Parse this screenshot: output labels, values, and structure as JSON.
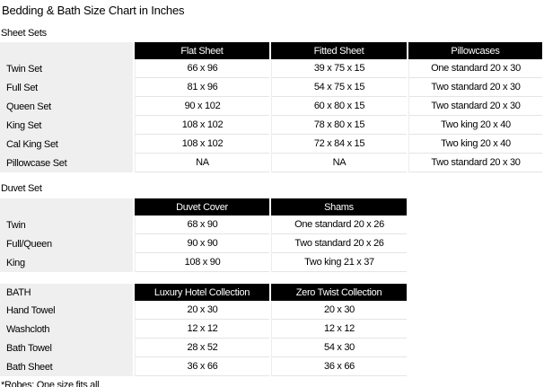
{
  "page": {
    "title": "Bedding & Bath Size Chart in Inches",
    "footnote": "*Robes: One size fits all"
  },
  "colors": {
    "header_bg": "#000000",
    "header_text": "#ffffff",
    "label_column_bg": "#efefef",
    "row_border": "#e4e4e4",
    "page_bg": "#ffffff",
    "text": "#000000"
  },
  "sheet_sets": {
    "section_label": "Sheet Sets",
    "columns": [
      "Flat Sheet",
      "Fitted Sheet",
      "Pillowcases"
    ],
    "rows": [
      [
        "Twin Set",
        "66 x 96",
        "39 x 75 x 15",
        "One standard 20 x 30"
      ],
      [
        "Full Set",
        "81 x 96",
        "54 x 75 x 15",
        "Two standard 20 x 30"
      ],
      [
        "Queen Set",
        "90 x 102",
        "60 x 80 x 15",
        "Two standard 20 x 30"
      ],
      [
        "King Set",
        "108 x 102",
        "78 x 80 x 15",
        "Two king 20 x 40"
      ],
      [
        "Cal King Set",
        "108 x 102",
        "72 x 84 x 15",
        "Two king 20 x 40"
      ],
      [
        "Pillowcase Set",
        "NA",
        "NA",
        "Two standard 20 x 30"
      ]
    ]
  },
  "duvet_set": {
    "section_label": "Duvet Set",
    "columns": [
      "Duvet Cover",
      "Shams"
    ],
    "rows": [
      [
        "Twin",
        "68 x 90",
        "One standard 20 x 26"
      ],
      [
        "Full/Queen",
        "90 x 90",
        "Two standard 20 x 26"
      ],
      [
        "King",
        "108 x 90",
        "Two king 21 x 37"
      ]
    ]
  },
  "bath": {
    "corner_label": "BATH",
    "columns": [
      "Luxury Hotel Collection",
      "Zero Twist Collection"
    ],
    "rows": [
      [
        "Hand Towel",
        "20 x 30",
        "20 x 30"
      ],
      [
        "Washcloth",
        "12 x 12",
        "12 x 12"
      ],
      [
        "Bath Towel",
        "28 x 52",
        "54 x 30"
      ],
      [
        "Bath Sheet",
        "36 x 66",
        "36 x 66"
      ]
    ]
  }
}
